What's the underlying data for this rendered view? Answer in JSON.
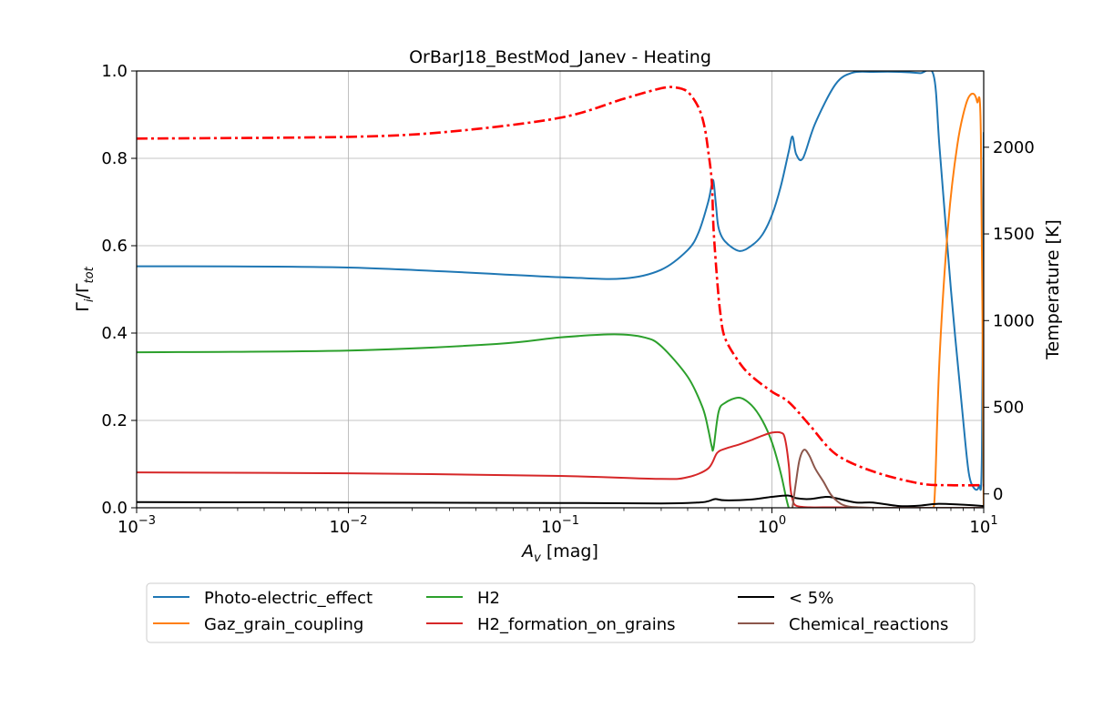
{
  "chart_data": {
    "type": "line",
    "title": "OrBarJ18_BestMod_Janev - Heating",
    "xlabel": {
      "base": "A",
      "sub": "v",
      "unit": " [mag]"
    },
    "ylabel": {
      "main": "Γ",
      "sub1": "i",
      "sep": "/Γ",
      "sub2": "tot"
    },
    "y2label": "Temperature [K]",
    "x_scale": "log",
    "xlim": [
      0.001,
      10
    ],
    "ylim": [
      0,
      1.0
    ],
    "y2lim": [
      -80,
      2440
    ],
    "grid": true,
    "legend_position": "bottom-outside",
    "x_ticks": [
      {
        "value": 0.001,
        "base": "10",
        "exp": "−3"
      },
      {
        "value": 0.01,
        "base": "10",
        "exp": "−2"
      },
      {
        "value": 0.1,
        "base": "10",
        "exp": "−1"
      },
      {
        "value": 1,
        "base": "10",
        "exp": "0"
      },
      {
        "value": 10,
        "base": "10",
        "exp": "1"
      }
    ],
    "y_ticks": [
      {
        "value": 0.0,
        "label": "0.0"
      },
      {
        "value": 0.2,
        "label": "0.2"
      },
      {
        "value": 0.4,
        "label": "0.4"
      },
      {
        "value": 0.6,
        "label": "0.6"
      },
      {
        "value": 0.8,
        "label": "0.8"
      },
      {
        "value": 1.0,
        "label": "1.0"
      }
    ],
    "y2_ticks": [
      {
        "value": 0,
        "label": "0"
      },
      {
        "value": 500,
        "label": "500"
      },
      {
        "value": 1000,
        "label": "1000"
      },
      {
        "value": 1500,
        "label": "1500"
      },
      {
        "value": 2000,
        "label": "2000"
      }
    ],
    "series": [
      {
        "name": "Photo-electric_effect",
        "color": "#1f77b4",
        "axis": "left",
        "style": "solid",
        "x": [
          0.001,
          0.01,
          0.1,
          0.2,
          0.3,
          0.4,
          0.45,
          0.5,
          0.52,
          0.53,
          0.545,
          0.56,
          0.6,
          0.7,
          0.8,
          0.9,
          1.0,
          1.1,
          1.2,
          1.25,
          1.3,
          1.4,
          1.6,
          2.0,
          2.4,
          3.0,
          4.0,
          5.0,
          5.8,
          6.2,
          7.0,
          8.0,
          8.5,
          9.0,
          9.5,
          9.8,
          10.0
        ],
        "y": [
          0.553,
          0.55,
          0.528,
          0.525,
          0.545,
          0.59,
          0.63,
          0.7,
          0.74,
          0.747,
          0.69,
          0.64,
          0.61,
          0.588,
          0.6,
          0.625,
          0.67,
          0.735,
          0.815,
          0.85,
          0.81,
          0.8,
          0.88,
          0.97,
          0.996,
          0.998,
          0.998,
          0.995,
          0.99,
          0.82,
          0.5,
          0.2,
          0.08,
          0.045,
          0.05,
          0.12,
          0.86
        ]
      },
      {
        "name": "Gaz_grain_coupling",
        "color": "#ff7f0e",
        "axis": "left",
        "style": "solid",
        "x": [
          5.8,
          5.9,
          6.2,
          6.8,
          7.5,
          8.2,
          8.8,
          9.3,
          9.7,
          10.0
        ],
        "y": [
          0.0,
          0.05,
          0.35,
          0.65,
          0.83,
          0.92,
          0.948,
          0.93,
          0.85,
          0.0
        ]
      },
      {
        "name": "H2",
        "color": "#2ca02c",
        "axis": "left",
        "style": "solid",
        "x": [
          0.001,
          0.01,
          0.05,
          0.1,
          0.18,
          0.25,
          0.3,
          0.4,
          0.47,
          0.5,
          0.52,
          0.53,
          0.56,
          0.6,
          0.7,
          0.8,
          0.9,
          1.0,
          1.1,
          1.17,
          1.2
        ],
        "y": [
          0.356,
          0.36,
          0.375,
          0.39,
          0.397,
          0.39,
          0.37,
          0.3,
          0.23,
          0.18,
          0.14,
          0.137,
          0.22,
          0.24,
          0.252,
          0.235,
          0.2,
          0.15,
          0.08,
          0.02,
          0.0
        ]
      },
      {
        "name": "H2_formation_on_grains",
        "color": "#d62728",
        "axis": "left",
        "style": "solid",
        "x": [
          0.001,
          0.01,
          0.1,
          0.3,
          0.4,
          0.5,
          0.55,
          0.6,
          0.7,
          0.8,
          0.9,
          1.0,
          1.1,
          1.15,
          1.2,
          1.22,
          1.25,
          1.3,
          1.5,
          2.0,
          3.0,
          5.0,
          8.0,
          10.0
        ],
        "y": [
          0.081,
          0.079,
          0.073,
          0.066,
          0.07,
          0.09,
          0.125,
          0.135,
          0.145,
          0.155,
          0.165,
          0.172,
          0.172,
          0.16,
          0.1,
          0.05,
          0.02,
          0.005,
          0.001,
          0.001,
          0.0,
          0.0,
          0.0,
          0.0
        ]
      },
      {
        "name": "< 5%",
        "color": "#000000",
        "axis": "left",
        "style": "solid",
        "x": [
          0.001,
          0.01,
          0.1,
          0.3,
          0.45,
          0.5,
          0.54,
          0.6,
          0.8,
          1.0,
          1.2,
          1.3,
          1.5,
          1.8,
          2.0,
          2.5,
          3.0,
          4.0,
          5.0,
          6.0,
          8.0,
          10.0
        ],
        "y": [
          0.013,
          0.012,
          0.011,
          0.01,
          0.012,
          0.015,
          0.02,
          0.017,
          0.019,
          0.025,
          0.028,
          0.022,
          0.02,
          0.025,
          0.022,
          0.012,
          0.012,
          0.004,
          0.005,
          0.009,
          0.007,
          0.004
        ]
      },
      {
        "name": "Chemical_reactions",
        "color": "#8c564b",
        "axis": "left",
        "style": "solid",
        "x": [
          1.25,
          1.3,
          1.35,
          1.42,
          1.5,
          1.6,
          1.75,
          1.9,
          2.1,
          2.3,
          2.6,
          3.0,
          4.0,
          6.0,
          10.0
        ],
        "y": [
          0.0,
          0.06,
          0.11,
          0.133,
          0.12,
          0.09,
          0.06,
          0.03,
          0.01,
          0.003,
          0.001,
          0.0,
          0.0,
          0.0,
          0.0
        ]
      },
      {
        "name": "",
        "color": "#ff0000",
        "axis": "right",
        "style": "dashdot",
        "x": [
          0.001,
          0.01,
          0.03,
          0.1,
          0.2,
          0.3,
          0.35,
          0.4,
          0.45,
          0.48,
          0.5,
          0.52,
          0.53,
          0.55,
          0.57,
          0.6,
          0.7,
          0.8,
          1.0,
          1.2,
          1.5,
          2.0,
          3.0,
          5.0,
          7.0,
          10.0
        ],
        "y": [
          2050,
          2060,
          2090,
          2170,
          2280,
          2340,
          2345,
          2320,
          2230,
          2120,
          1980,
          1800,
          1530,
          1250,
          1050,
          900,
          760,
          680,
          590,
          530,
          400,
          230,
          130,
          60,
          50,
          50
        ]
      }
    ],
    "legend": [
      {
        "name": "Photo-electric_effect",
        "color": "#1f77b4"
      },
      {
        "name": "H2",
        "color": "#2ca02c"
      },
      {
        "name": "< 5%",
        "color": "#000000"
      },
      {
        "name": "Gaz_grain_coupling",
        "color": "#ff7f0e"
      },
      {
        "name": "H2_formation_on_grains",
        "color": "#d62728"
      },
      {
        "name": "Chemical_reactions",
        "color": "#8c564b"
      }
    ]
  }
}
